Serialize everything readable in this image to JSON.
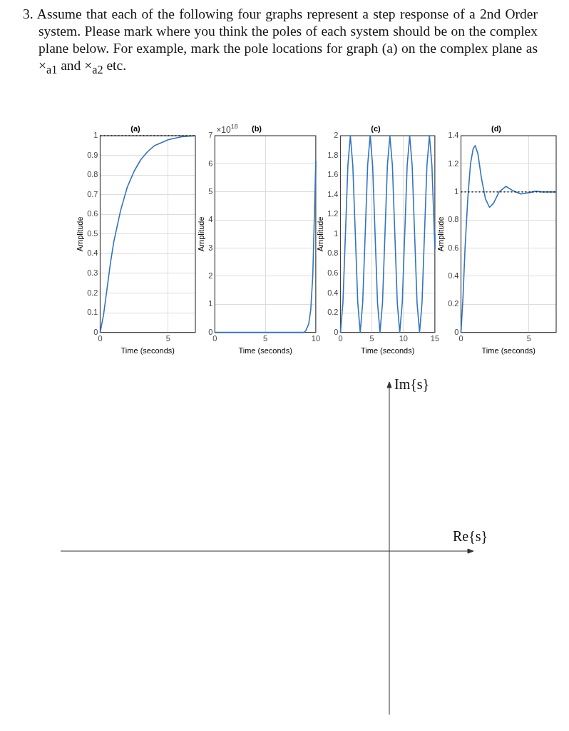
{
  "chart_data": [
    {
      "type": "other",
      "annotations": [
        "3. Assume that each of the following four graphs represent a step response of a 2nd Order system. Please mark where you think the poles of each system should be on the complex plane below. For example, mark the pole locations for graph (a) on the complex plane as ×$_{a1}$ and ×$_{a2}$ etc."
      ]
    },
    {
      "type": "line",
      "title": "(a)",
      "xlabel": "Time (seconds)",
      "ylabel": "Amplitude",
      "grid": true,
      "x": [
        0,
        0.25,
        0.5,
        0.75,
        1,
        1.5,
        2,
        2.5,
        3,
        3.5,
        4,
        5,
        6,
        7
      ],
      "series": [
        {
          "color": "#3274c0",
          "values": [
            0,
            0.09,
            0.22,
            0.35,
            0.46,
            0.62,
            0.74,
            0.82,
            0.88,
            0.92,
            0.95,
            0.98,
            0.995,
            1.0
          ]
        }
      ],
      "xlim": [
        0,
        7
      ],
      "xticks": [
        0,
        5
      ],
      "ylim": [
        0,
        1
      ],
      "yticks": [
        0,
        0.1,
        0.2,
        0.3,
        0.4,
        0.5,
        0.6,
        0.7,
        0.8,
        0.9,
        1
      ],
      "ref_lines": [
        {
          "axis": "y",
          "value": 1,
          "color": "#000000",
          "line_style": "dotted"
        }
      ]
    },
    {
      "type": "line",
      "title": "(b)",
      "xlabel": "Time (seconds)",
      "ylabel": "Amplitude",
      "grid": true,
      "annotations": [
        "×10$^{18}$"
      ],
      "x": [
        0,
        2,
        4,
        6,
        8,
        8.8,
        9,
        9.3,
        9.5,
        9.7,
        9.85,
        10
      ],
      "series": [
        {
          "color": "#3274c0",
          "values": [
            0,
            0,
            0,
            0,
            0,
            0,
            0.05,
            0.3,
            0.8,
            2,
            4,
            6.1
          ]
        }
      ],
      "xlim": [
        0,
        10
      ],
      "xticks": [
        0,
        5,
        10
      ],
      "ylim": [
        0,
        7
      ],
      "yticks": [
        0,
        1,
        2,
        3,
        4,
        5,
        6,
        7
      ]
    },
    {
      "type": "line",
      "title": "(c)",
      "xlabel": "Time (seconds)",
      "ylabel": "Amplitude",
      "grid": true,
      "x": [
        0,
        0.39,
        0.79,
        1.18,
        1.57,
        1.96,
        2.36,
        2.75,
        3.14,
        3.53,
        3.93,
        4.32,
        4.71,
        5.11,
        5.5,
        5.89,
        6.28,
        6.68,
        7.07,
        7.46,
        7.85,
        8.25,
        8.64,
        9.03,
        9.42,
        9.82,
        10.21,
        10.6,
        11,
        11.39,
        11.78,
        12.17,
        12.57,
        12.96,
        13.35,
        13.74,
        14.14,
        14.53,
        14.92,
        15
      ],
      "series": [
        {
          "color": "#3274c0",
          "values": [
            0,
            0.3,
            1,
            1.7,
            2,
            1.7,
            1,
            0.3,
            0,
            0.3,
            1,
            1.7,
            2,
            1.7,
            1,
            0.3,
            0,
            0.3,
            1,
            1.7,
            2,
            1.7,
            1,
            0.3,
            0,
            0.3,
            1,
            1.7,
            2,
            1.7,
            1,
            0.3,
            0,
            0.3,
            1,
            1.7,
            2,
            1.7,
            1,
            0.85
          ]
        }
      ],
      "xlim": [
        0,
        15
      ],
      "xticks": [
        0,
        5,
        10,
        15
      ],
      "ylim": [
        0,
        2
      ],
      "yticks": [
        0,
        0.2,
        0.4,
        0.6,
        0.8,
        1,
        1.2,
        1.4,
        1.6,
        1.8,
        2
      ]
    },
    {
      "type": "line",
      "title": "(d)",
      "xlabel": "Time (seconds)",
      "ylabel": "Amplitude",
      "grid": true,
      "x": [
        0,
        0.15,
        0.3,
        0.5,
        0.7,
        0.9,
        1.05,
        1.25,
        1.5,
        1.8,
        2.1,
        2.4,
        2.8,
        3.3,
        3.8,
        4.4,
        5,
        5.5,
        6,
        7
      ],
      "series": [
        {
          "color": "#3274c0",
          "values": [
            0,
            0.25,
            0.6,
            0.95,
            1.2,
            1.31,
            1.33,
            1.27,
            1.1,
            0.95,
            0.89,
            0.92,
            1.0,
            1.04,
            1.01,
            0.985,
            0.995,
            1.005,
            1,
            1
          ]
        }
      ],
      "xlim": [
        0,
        7
      ],
      "xticks": [
        0,
        5
      ],
      "ylim": [
        0,
        1.4
      ],
      "yticks": [
        0,
        0.2,
        0.4,
        0.6,
        0.8,
        1,
        1.2,
        1.4
      ],
      "ref_lines": [
        {
          "axis": "y",
          "value": 1,
          "color": "#000000",
          "line_style": "dotted"
        }
      ]
    },
    {
      "type": "other",
      "annotations": [
        "Im{s}",
        "Re{s}"
      ]
    }
  ]
}
